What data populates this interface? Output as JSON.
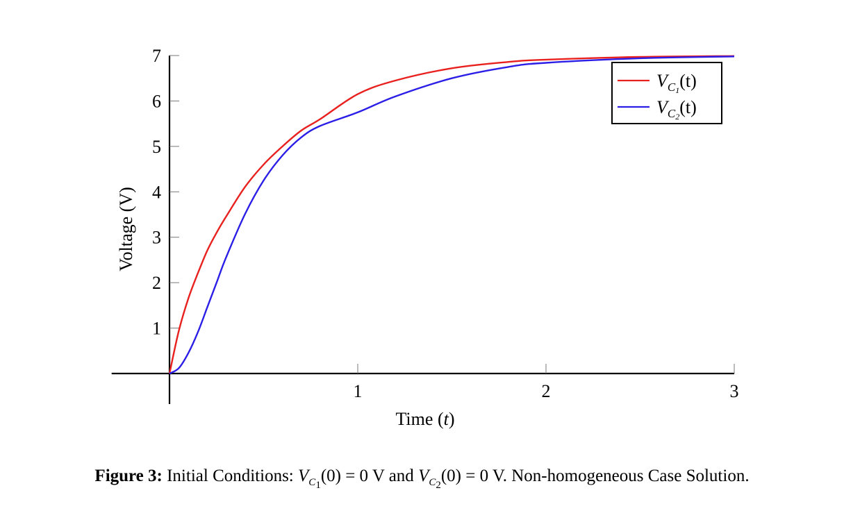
{
  "chart_data": {
    "type": "line",
    "xlabel": "Time",
    "xlabel_var": "t",
    "ylabel": "Voltage (V)",
    "xlim": [
      -0.3,
      3
    ],
    "ylim": [
      0,
      7
    ],
    "x_ticks": [
      "1",
      "2",
      "3"
    ],
    "y_ticks": [
      "1",
      "2",
      "3",
      "4",
      "5",
      "6",
      "7"
    ],
    "legend_position": "top-right",
    "grid": false,
    "series": [
      {
        "name": "V_C1(t)",
        "name_main": "V",
        "name_sub": "C",
        "name_subsub": "1",
        "name_arg": "(t)",
        "color": "#e8201e",
        "x": [
          0,
          0.05,
          0.1,
          0.15,
          0.2,
          0.25,
          0.3,
          0.4,
          0.5,
          0.6,
          0.7,
          0.8,
          1.0,
          1.2,
          1.5,
          1.8,
          2.0,
          2.5,
          3.0
        ],
        "y": [
          0,
          0.95,
          1.65,
          2.2,
          2.7,
          3.1,
          3.45,
          4.1,
          4.6,
          5.0,
          5.35,
          5.6,
          6.15,
          6.45,
          6.72,
          6.86,
          6.91,
          6.97,
          6.99
        ]
      },
      {
        "name": "V_C2(t)",
        "name_main": "V",
        "name_sub": "C",
        "name_subsub": "2",
        "name_arg": "(t)",
        "color": "#2b1ee6",
        "x": [
          0,
          0.05,
          0.1,
          0.15,
          0.2,
          0.25,
          0.3,
          0.4,
          0.5,
          0.6,
          0.7,
          0.8,
          1.0,
          1.2,
          1.5,
          1.8,
          2.0,
          2.5,
          3.0
        ],
        "y": [
          0,
          0.12,
          0.45,
          0.9,
          1.45,
          2.0,
          2.55,
          3.5,
          4.25,
          4.8,
          5.2,
          5.45,
          5.75,
          6.1,
          6.5,
          6.75,
          6.84,
          6.94,
          6.98
        ]
      }
    ]
  },
  "caption": {
    "label": "Figure 3:",
    "text_before": " Initial Conditions: ",
    "cond1_main": "V",
    "cond1_sub": "C",
    "cond1_subsub": "1",
    "cond1_rest": "(0) = 0 V and ",
    "cond2_main": "V",
    "cond2_sub": "C",
    "cond2_subsub": "2",
    "cond2_rest": "(0) = 0 V. Non-homogeneous Case Solution."
  }
}
